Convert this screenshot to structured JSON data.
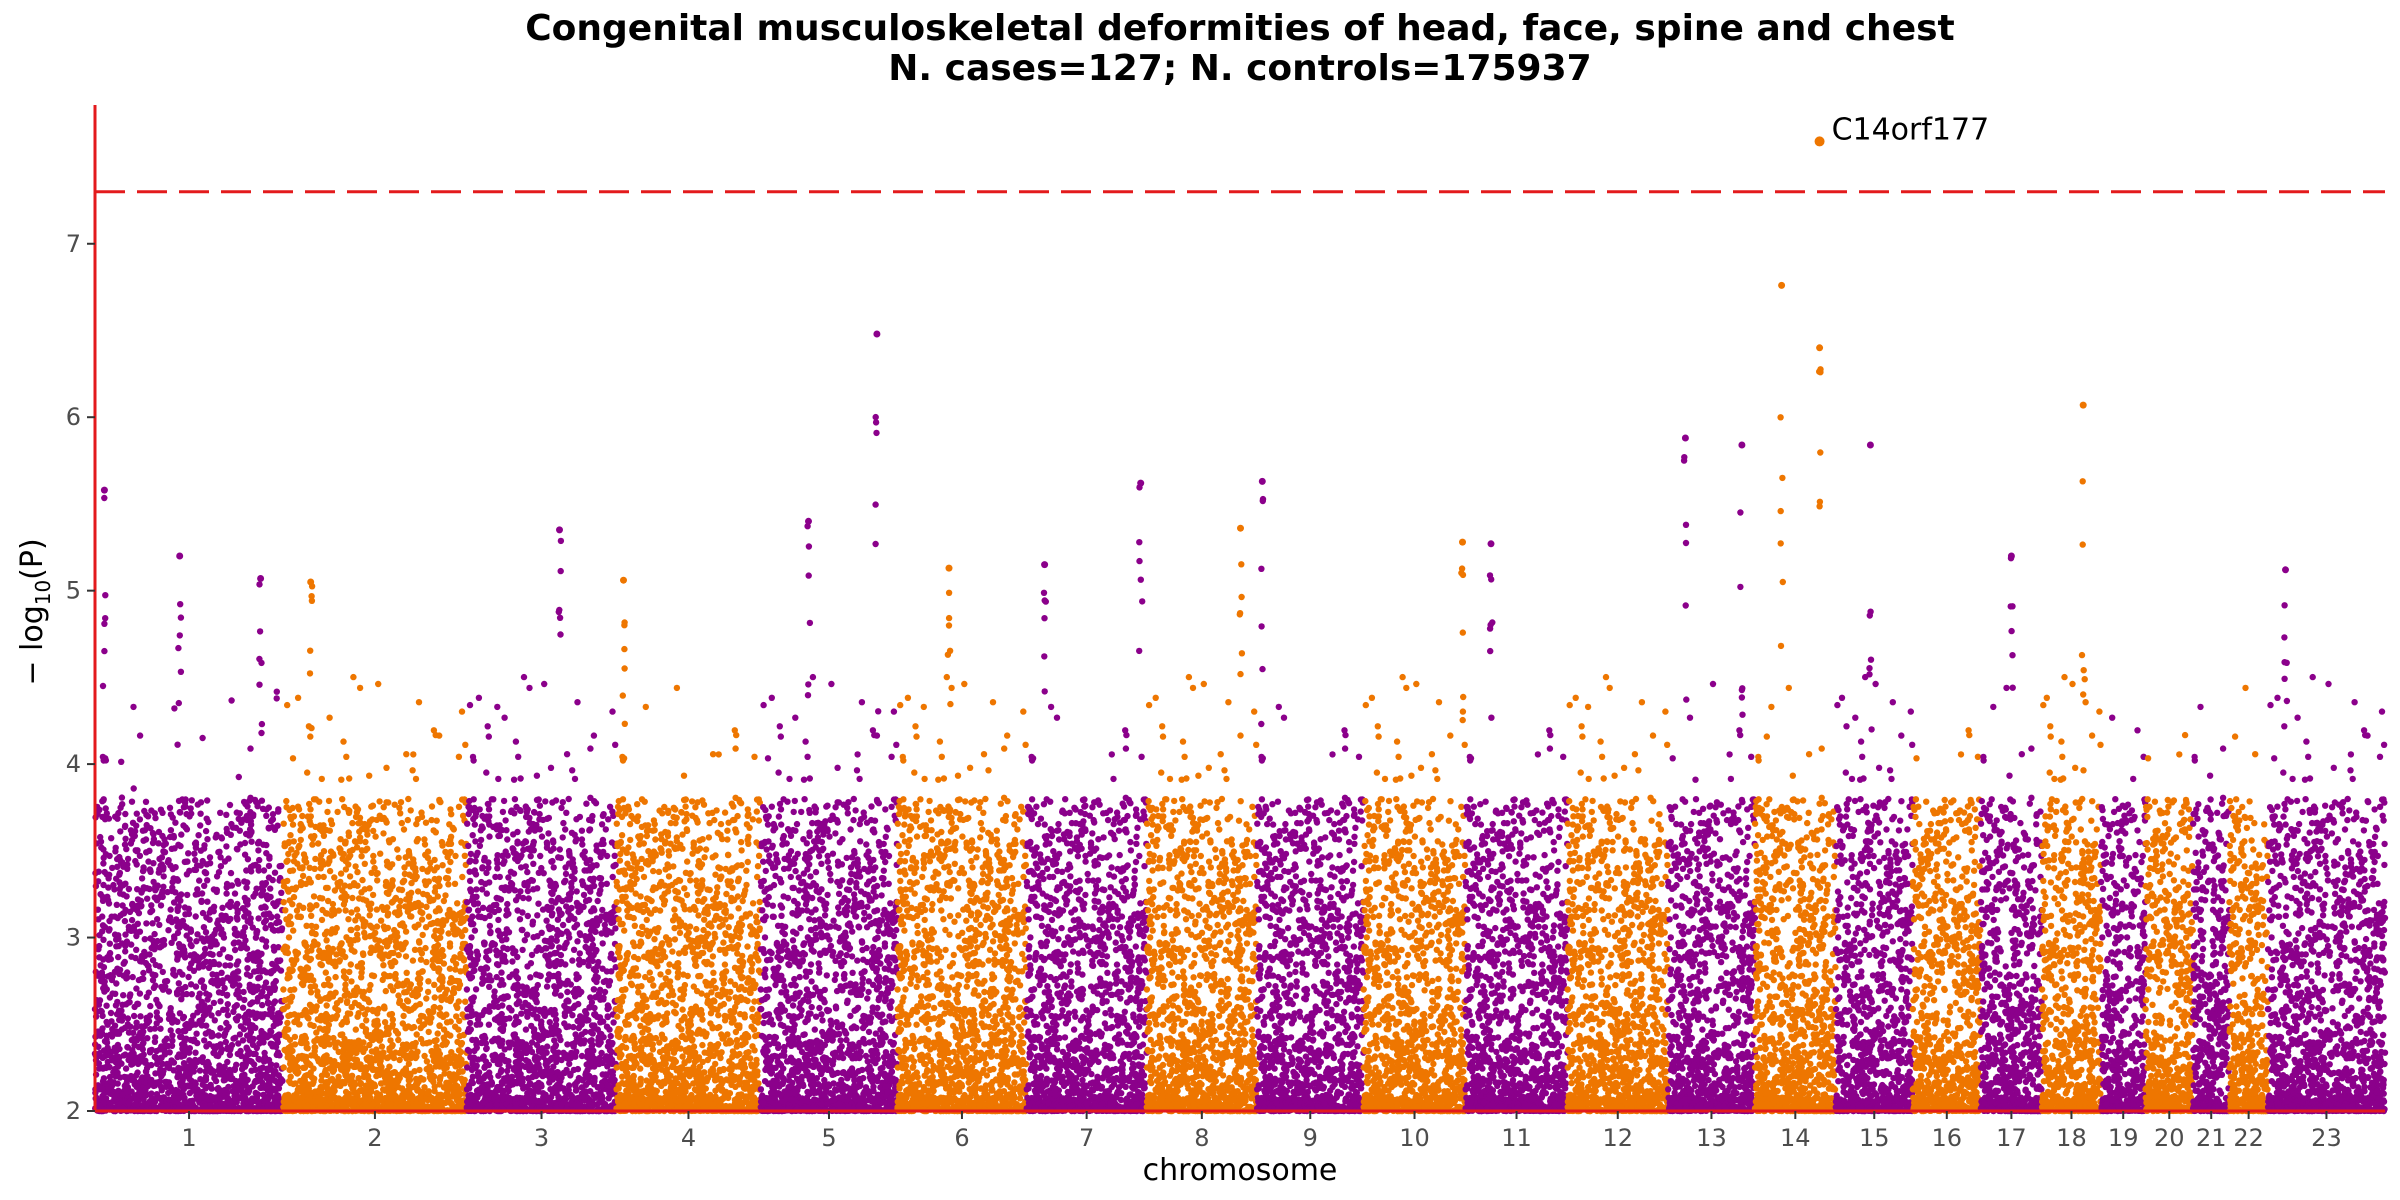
{
  "chart_data": {
    "type": "scatter",
    "title": "Congenital musculoskeletal deformities of head, face, spine and chest",
    "subtitle": "N. cases=127; N. controls=175937",
    "xlabel": "chromosome",
    "ylabel_prefix": "− log",
    "ylabel_sub": "10",
    "ylabel_suffix": "(P)",
    "ylim": [
      2,
      7.8
    ],
    "yticks": [
      2,
      3,
      4,
      5,
      6,
      7
    ],
    "significance_line": 7.3,
    "colors": {
      "odd": "#8b008b",
      "even": "#ee7600",
      "threshold": "#e31a1c",
      "axis": "#e31a1c"
    },
    "chromosomes": [
      {
        "label": "1",
        "length": 249
      },
      {
        "label": "2",
        "length": 243
      },
      {
        "label": "3",
        "length": 198
      },
      {
        "label": "4",
        "length": 191
      },
      {
        "label": "5",
        "length": 181
      },
      {
        "label": "6",
        "length": 171
      },
      {
        "label": "7",
        "length": 159
      },
      {
        "label": "8",
        "length": 146
      },
      {
        "label": "9",
        "length": 141
      },
      {
        "label": "10",
        "length": 135
      },
      {
        "label": "11",
        "length": 135
      },
      {
        "label": "12",
        "length": 133
      },
      {
        "label": "13",
        "length": 115
      },
      {
        "label": "14",
        "length": 107
      },
      {
        "label": "15",
        "length": 102
      },
      {
        "label": "16",
        "length": 90
      },
      {
        "label": "17",
        "length": 81
      },
      {
        "label": "18",
        "length": 78
      },
      {
        "label": "19",
        "length": 59
      },
      {
        "label": "20",
        "length": 63
      },
      {
        "label": "21",
        "length": 48
      },
      {
        "label": "22",
        "length": 51
      },
      {
        "label": "23",
        "length": 155
      }
    ],
    "top_hits": [
      {
        "chr": "1",
        "pos_frac": 0.05,
        "y": 5.58
      },
      {
        "chr": "1",
        "pos_frac": 0.45,
        "y": 5.2
      },
      {
        "chr": "1",
        "pos_frac": 0.88,
        "y": 5.07
      },
      {
        "chr": "2",
        "pos_frac": 0.15,
        "y": 5.05
      },
      {
        "chr": "3",
        "pos_frac": 0.62,
        "y": 5.35
      },
      {
        "chr": "4",
        "pos_frac": 0.05,
        "y": 5.06
      },
      {
        "chr": "5",
        "pos_frac": 0.35,
        "y": 5.4
      },
      {
        "chr": "5",
        "pos_frac": 0.85,
        "y": 6.48
      },
      {
        "chr": "6",
        "pos_frac": 0.4,
        "y": 5.13
      },
      {
        "chr": "7",
        "pos_frac": 0.15,
        "y": 5.15
      },
      {
        "chr": "7",
        "pos_frac": 0.95,
        "y": 5.62
      },
      {
        "chr": "8",
        "pos_frac": 0.85,
        "y": 5.36
      },
      {
        "chr": "9",
        "pos_frac": 0.05,
        "y": 5.63
      },
      {
        "chr": "10",
        "pos_frac": 0.97,
        "y": 5.28
      },
      {
        "chr": "11",
        "pos_frac": 0.25,
        "y": 5.27
      },
      {
        "chr": "13",
        "pos_frac": 0.2,
        "y": 5.88
      },
      {
        "chr": "13",
        "pos_frac": 0.85,
        "y": 5.84
      },
      {
        "chr": "14",
        "pos_frac": 0.33,
        "y": 6.76
      },
      {
        "chr": "14",
        "pos_frac": 0.8,
        "y": 6.4
      },
      {
        "chr": "15",
        "pos_frac": 0.45,
        "y": 5.84
      },
      {
        "chr": "17",
        "pos_frac": 0.5,
        "y": 5.2
      },
      {
        "chr": "18",
        "pos_frac": 0.7,
        "y": 6.07
      },
      {
        "chr": "23",
        "pos_frac": 0.15,
        "y": 5.12
      }
    ],
    "annotations": [
      {
        "label": "C14orf177",
        "chr": "14",
        "pos_frac": 0.8,
        "y": 7.59
      }
    ]
  }
}
